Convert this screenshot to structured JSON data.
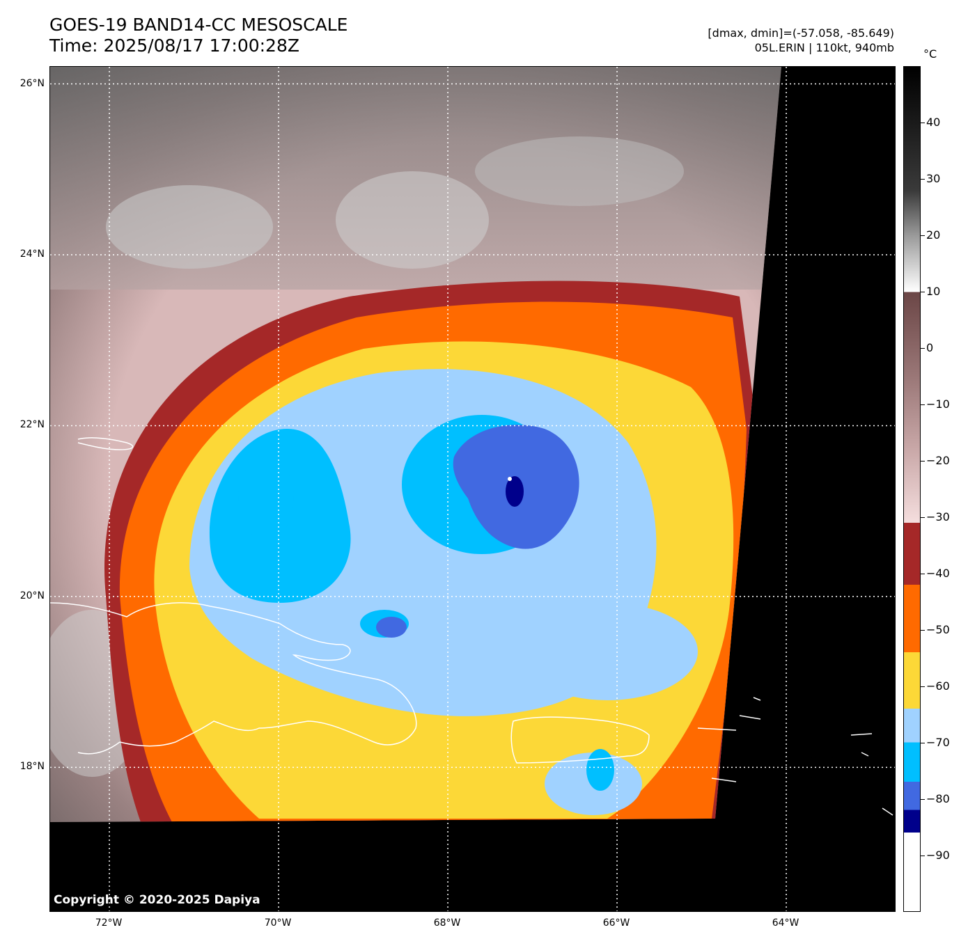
{
  "title": {
    "line1": "GOES-19 BAND14-CC MESOSCALE",
    "line2": "Time: 2025/08/17 17:00:28Z"
  },
  "info": {
    "line1": "[dmax, dmin]=(-57.058, -85.649)",
    "line2": "05L.ERIN | 110kt, 940mb"
  },
  "map": {
    "lat_labels": [
      "26°N",
      "24°N",
      "22°N",
      "20°N",
      "18°N"
    ],
    "lon_labels": [
      "72°W",
      "70°W",
      "68°W",
      "66°W",
      "64°W"
    ],
    "lat_range": [
      16.3,
      26.2
    ],
    "lon_range": [
      -72.7,
      -62.7
    ],
    "grid_lats": [
      26,
      24,
      22,
      20,
      18
    ],
    "grid_lons": [
      -72,
      -70,
      -68,
      -66,
      -64
    ],
    "storm_center": {
      "lat": 21.0,
      "lon": -67.2
    },
    "coastline_color": "#ffffff"
  },
  "colorbar": {
    "unit": "°C",
    "tick_labels": [
      "40",
      "30",
      "20",
      "10",
      "0",
      "−10",
      "−20",
      "−30",
      "−40",
      "−50",
      "−60",
      "−70",
      "−80",
      "−90"
    ],
    "tick_values": [
      40,
      30,
      20,
      10,
      0,
      -10,
      -20,
      -30,
      -40,
      -50,
      -60,
      -70,
      -80,
      -90
    ],
    "range": [
      -100,
      50
    ],
    "bands": [
      {
        "from": 50,
        "to": 10,
        "color": "gradient-gray"
      },
      {
        "from": 10,
        "to": -31,
        "color": "gradient-brown-pink"
      },
      {
        "from": -31,
        "to": -42,
        "color": "#a52828"
      },
      {
        "from": -42,
        "to": -54,
        "color": "#ff6a00"
      },
      {
        "from": -54,
        "to": -64,
        "color": "#fcd837"
      },
      {
        "from": -64,
        "to": -70,
        "color": "#a0d2ff"
      },
      {
        "from": -70,
        "to": -77,
        "color": "#00bfff"
      },
      {
        "from": -77,
        "to": -82,
        "color": "#4169e1"
      },
      {
        "from": -82,
        "to": -86,
        "color": "#00008b"
      },
      {
        "from": -86,
        "to": -100,
        "color": "#ffffff"
      }
    ]
  },
  "copyright": "Copyright © 2020-2025 Dapiya"
}
